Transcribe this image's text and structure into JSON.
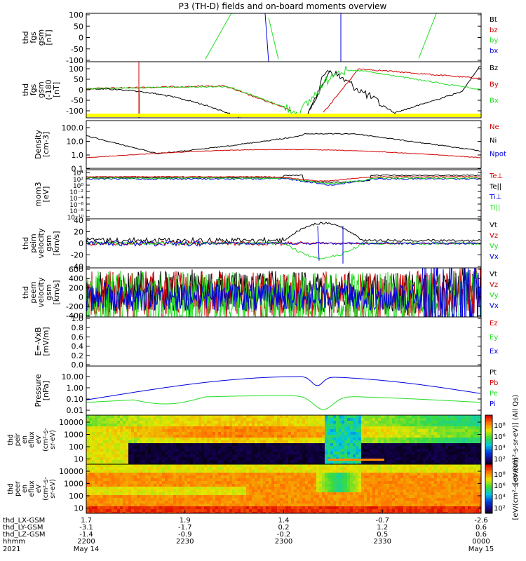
{
  "title": "P3 (TH-D) fields and on-board moments overview",
  "colors": {
    "black": "#000000",
    "red": "#d00000",
    "green": "#22dd22",
    "blue": "#0000dd",
    "yellow": "#ffff00"
  },
  "chart_data": [
    {
      "id": "fgs",
      "type": "line",
      "ylabel_lines": [
        "thd",
        "fgs",
        "gsm",
        "[nT]"
      ],
      "ylim": [
        -100,
        100
      ],
      "yticks": [
        "100",
        "50",
        "0",
        "-50",
        "-100"
      ],
      "legend": [
        {
          "name": "Bt",
          "color": "black"
        },
        {
          "name": "bz",
          "color": "red"
        },
        {
          "name": "by",
          "color": "green"
        },
        {
          "name": "bx",
          "color": "blue"
        }
      ]
    },
    {
      "id": "fgs_cust",
      "type": "line",
      "ylabel_lines": [
        "thd",
        "fgs",
        "gsm",
        "(-180",
        "[nT]"
      ],
      "ylim": [
        -120,
        120
      ],
      "yticks": [
        "100",
        "50",
        "0",
        "-50",
        "-100"
      ],
      "legend": [
        {
          "name": "Bz",
          "color": "black"
        },
        {
          "name": "By",
          "color": "red"
        },
        {
          "name": "Bx",
          "color": "green"
        }
      ]
    },
    {
      "id": "density",
      "type": "line",
      "scale": "log",
      "ylabel_lines": [
        "Density",
        "[cm-3]"
      ],
      "yticks": [
        "100.0",
        "10.0",
        "1.0",
        "0.1"
      ],
      "legend": [
        {
          "name": "Ne",
          "color": "red"
        },
        {
          "name": "Ni",
          "color": "black"
        },
        {
          "name": "Npot",
          "color": "blue"
        }
      ]
    },
    {
      "id": "temp",
      "type": "line",
      "scale": "log",
      "ylabel_lines": [
        "mom3",
        "[eV]"
      ],
      "yticks": [
        "10⁴",
        "10²",
        "10⁰",
        "10⁻²",
        "10⁻⁴",
        "10⁻⁶",
        "10⁻⁸",
        "10⁻¹⁰"
      ],
      "legend": [
        {
          "name": "Te⊥",
          "color": "red"
        },
        {
          "name": "Te||",
          "color": "black"
        },
        {
          "name": "Ti⊥",
          "color": "blue"
        },
        {
          "name": "Ti||",
          "color": "green"
        }
      ]
    },
    {
      "id": "vi",
      "type": "line",
      "ylabel_lines": [
        "thd",
        "peim",
        "velocity",
        "gsm",
        "[km/s]"
      ],
      "ylim": [
        -40,
        40
      ],
      "yticks": [
        "40",
        "20",
        "0",
        "-20",
        "-40"
      ],
      "legend": [
        {
          "name": "Vt",
          "color": "black"
        },
        {
          "name": "Vz",
          "color": "red"
        },
        {
          "name": "Vy",
          "color": "green"
        },
        {
          "name": "Vx",
          "color": "blue"
        }
      ]
    },
    {
      "id": "ve",
      "type": "line",
      "ylabel_lines": [
        "thd",
        "peem",
        "velocity",
        "gsm",
        "[km/s]"
      ],
      "ylim": [
        -400,
        600
      ],
      "yticks": [
        "600",
        "400",
        "200",
        "0",
        "-200",
        "-400"
      ],
      "legend": [
        {
          "name": "Vt",
          "color": "black"
        },
        {
          "name": "Vz",
          "color": "red"
        },
        {
          "name": "Vy",
          "color": "green"
        },
        {
          "name": "Vx",
          "color": "blue"
        }
      ]
    },
    {
      "id": "efield",
      "type": "line",
      "ylabel_lines": [
        "E=-VxB",
        "[mV/m]"
      ],
      "ylim": [
        0,
        1
      ],
      "yticks": [
        "1.0",
        "0.8",
        "0.6",
        "0.4",
        "0.2",
        "0.0"
      ],
      "legend": [
        {
          "name": "Ez",
          "color": "red"
        },
        {
          "name": "Ey",
          "color": "green"
        },
        {
          "name": "Ex",
          "color": "blue"
        }
      ]
    },
    {
      "id": "pressure",
      "type": "line",
      "scale": "log",
      "ylabel_lines": [
        "Pressure",
        "[nPa]"
      ],
      "yticks": [
        "10.00",
        "1.00",
        "0.10",
        "0.01"
      ],
      "legend": [
        {
          "name": "Pt",
          "color": "black"
        },
        {
          "name": "Pb",
          "color": "red"
        },
        {
          "name": "Pe",
          "color": "green"
        },
        {
          "name": "Pi",
          "color": "blue"
        }
      ]
    },
    {
      "id": "peir",
      "type": "heatmap",
      "ylabel_lines": [
        "thd",
        "peir",
        "en",
        "eflux",
        "eV",
        "(cm²-s-",
        "sr-eV)"
      ],
      "yticks": [
        "10000",
        "1000",
        "100",
        "10"
      ],
      "colorbar_ticks": [
        "10⁸",
        "10⁶",
        "10⁴",
        "10²"
      ],
      "colorbar_label": "[eV/(cm²-s-sr-eV)] (All Qs)"
    },
    {
      "id": "peer",
      "type": "heatmap",
      "ylabel_lines": [
        "thd",
        "peer",
        "en",
        "eflux",
        "eV",
        "(cm²-s-",
        "sr-eV)"
      ],
      "yticks": [
        "10000",
        "1000",
        "100",
        "10"
      ],
      "colorbar_ticks": [
        "10⁸",
        "10⁶",
        "10⁴",
        "10²"
      ],
      "colorbar_label": "[eV/(cm²-s-sr-eV)]"
    }
  ],
  "x_axis": {
    "row_labels": [
      "thd_LX-GSM",
      "thd_LY-GSM",
      "thd_LZ-GSM",
      "hhmm",
      "2021"
    ],
    "ticks": [
      {
        "rows": [
          "1.7",
          "-3.1",
          "-1.4",
          "2200",
          "May 14"
        ]
      },
      {
        "rows": [
          "1.9",
          "-1.7",
          "-0.9",
          "2230",
          ""
        ]
      },
      {
        "rows": [
          "1.4",
          "0.2",
          "-0.2",
          "2300",
          ""
        ]
      },
      {
        "rows": [
          "-0.7",
          "1.2",
          "0.5",
          "2330",
          ""
        ]
      },
      {
        "rows": [
          "-2.6",
          "0.6",
          "0.6",
          "0000",
          "May 15"
        ]
      }
    ]
  }
}
